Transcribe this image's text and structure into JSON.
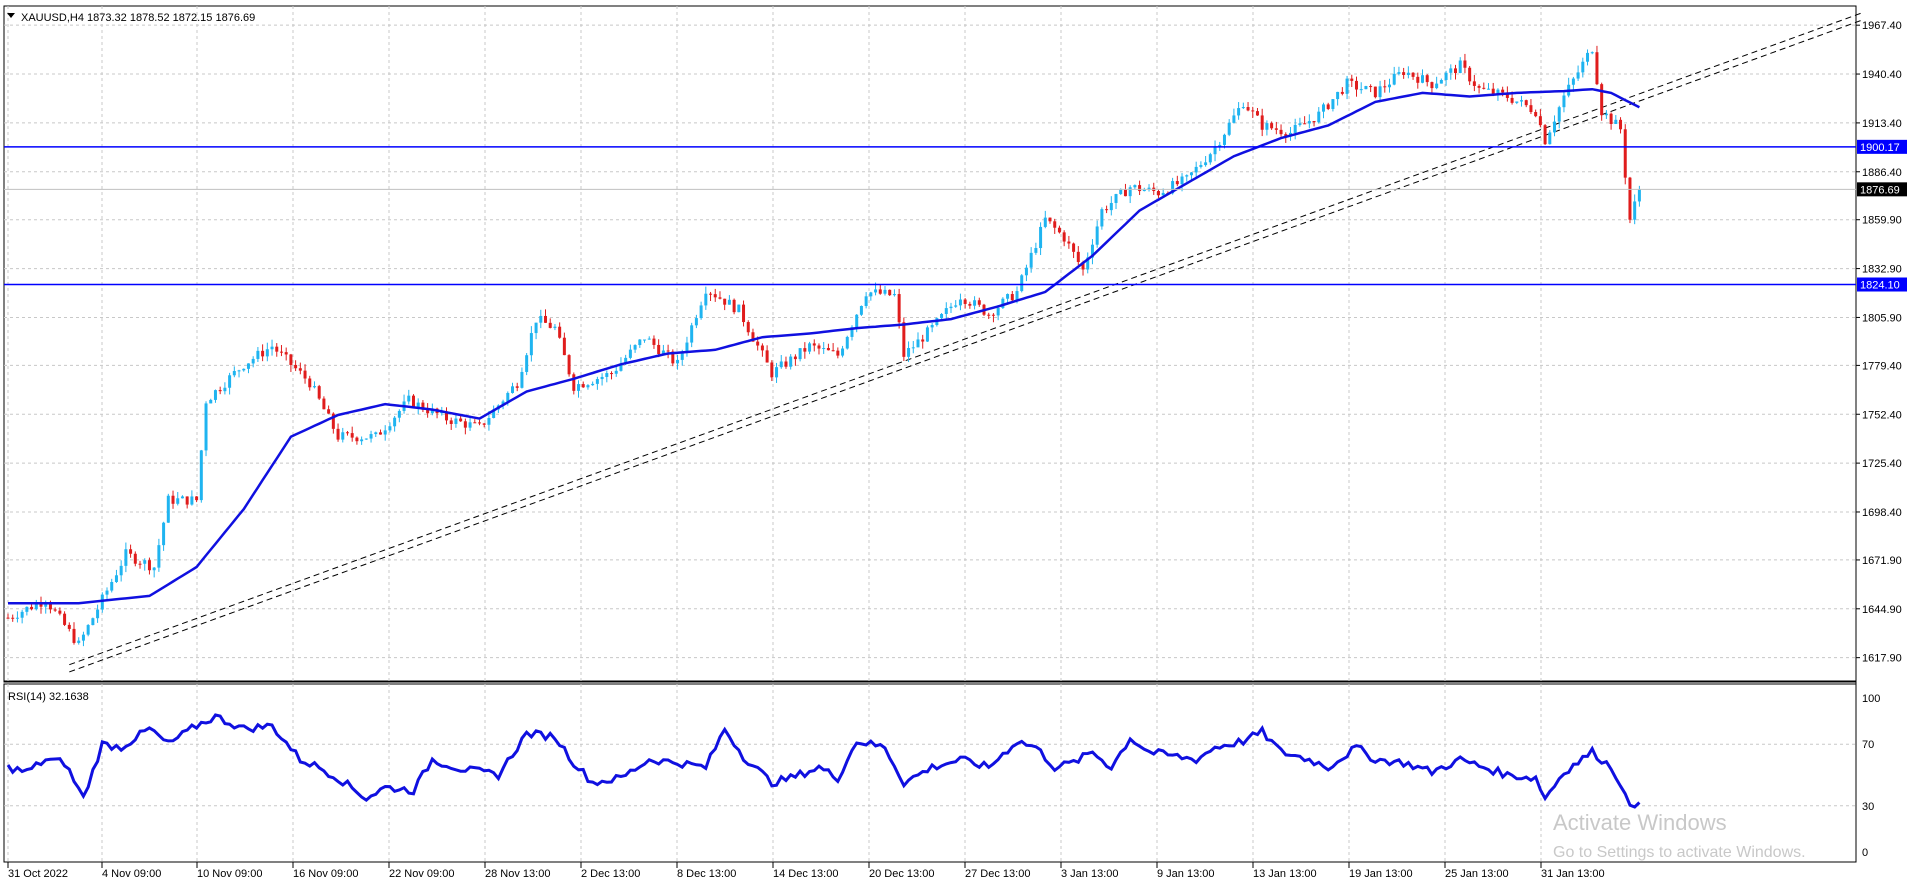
{
  "window": {
    "symbol_header": "XAUUSD,H4  1873.32 1878.52 1872.15 1876.69",
    "collapse_arrow_icon": "triangle-down-icon"
  },
  "price_panel": {
    "price_labels": [
      "1967.40",
      "1940.40",
      "1913.40",
      "1886.40",
      "1859.90",
      "1832.90",
      "1805.90",
      "1779.40",
      "1752.40",
      "1725.40",
      "1698.40",
      "1671.90",
      "1644.90",
      "1617.90"
    ],
    "horizontal_lines": [
      {
        "label": "1900.17",
        "value": 1900.17
      },
      {
        "label": "1824.10",
        "value": 1824.1
      }
    ],
    "current_price": {
      "label": "1876.69",
      "value": 1876.69
    },
    "colors": {
      "bull": "#1fb4f0",
      "bear": "#e01c1c",
      "ma": "#1010e0",
      "hline": "#0000ff",
      "tag_bg": "#0000ff",
      "price_tag_bg": "#000000"
    }
  },
  "rsi_panel": {
    "header": "RSI(14) 32.1638",
    "levels": [
      "100",
      "70",
      "30",
      "0"
    ],
    "color": "#1010e0"
  },
  "time_axis": {
    "labels": [
      "31 Oct 2022",
      "4 Nov 09:00",
      "10 Nov 09:00",
      "16 Nov 09:00",
      "22 Nov 09:00",
      "28 Nov 13:00",
      "2 Dec 13:00",
      "8 Dec 13:00",
      "14 Dec 13:00",
      "20 Dec 13:00",
      "27 Dec 13:00",
      "3 Jan 13:00",
      "9 Jan 13:00",
      "13 Jan 13:00",
      "19 Jan 13:00",
      "25 Jan 13:00",
      "31 Jan 13:00"
    ]
  },
  "watermark": {
    "title": "Activate Windows",
    "subtitle": "Go to Settings to activate Windows."
  },
  "chart_data": [
    {
      "type": "candlestick",
      "ylim": [
        1605,
        1978
      ],
      "close_anchors": [
        [
          0,
          1640
        ],
        [
          8,
          1650
        ],
        [
          15,
          1625
        ],
        [
          20,
          1650
        ],
        [
          25,
          1675
        ],
        [
          31,
          1668
        ],
        [
          34,
          1705
        ],
        [
          40,
          1705
        ],
        [
          42,
          1760
        ],
        [
          50,
          1780
        ],
        [
          56,
          1790
        ],
        [
          64,
          1770
        ],
        [
          70,
          1740
        ],
        [
          78,
          1740
        ],
        [
          85,
          1760
        ],
        [
          93,
          1750
        ],
        [
          100,
          1745
        ],
        [
          108,
          1770
        ],
        [
          112,
          1805
        ],
        [
          116,
          1800
        ],
        [
          120,
          1768
        ],
        [
          128,
          1775
        ],
        [
          135,
          1795
        ],
        [
          142,
          1780
        ],
        [
          148,
          1822
        ],
        [
          155,
          1810
        ],
        [
          162,
          1775
        ],
        [
          170,
          1790
        ],
        [
          176,
          1785
        ],
        [
          182,
          1820
        ],
        [
          188,
          1818
        ],
        [
          190,
          1785
        ],
        [
          196,
          1800
        ],
        [
          202,
          1818
        ],
        [
          208,
          1808
        ],
        [
          214,
          1820
        ],
        [
          220,
          1860
        ],
        [
          224,
          1850
        ],
        [
          228,
          1832
        ],
        [
          232,
          1865
        ],
        [
          238,
          1878
        ],
        [
          244,
          1875
        ],
        [
          250,
          1882
        ],
        [
          256,
          1900
        ],
        [
          262,
          1925
        ],
        [
          266,
          1912
        ],
        [
          272,
          1908
        ],
        [
          278,
          1918
        ],
        [
          284,
          1935
        ],
        [
          290,
          1930
        ],
        [
          296,
          1942
        ],
        [
          302,
          1935
        ],
        [
          308,
          1945
        ],
        [
          312,
          1932
        ],
        [
          318,
          1928
        ],
        [
          324,
          1920
        ],
        [
          326,
          1904
        ],
        [
          330,
          1928
        ],
        [
          336,
          1955
        ],
        [
          338,
          1920
        ],
        [
          342,
          1910
        ],
        [
          344,
          1860
        ],
        [
          346,
          1876.69
        ]
      ],
      "ma_anchors": [
        [
          0,
          1648
        ],
        [
          15,
          1648
        ],
        [
          30,
          1652
        ],
        [
          40,
          1668
        ],
        [
          50,
          1700
        ],
        [
          60,
          1740
        ],
        [
          70,
          1752
        ],
        [
          80,
          1758
        ],
        [
          90,
          1755
        ],
        [
          100,
          1750
        ],
        [
          110,
          1765
        ],
        [
          120,
          1772
        ],
        [
          130,
          1780
        ],
        [
          140,
          1786
        ],
        [
          150,
          1788
        ],
        [
          160,
          1795
        ],
        [
          170,
          1797
        ],
        [
          180,
          1800
        ],
        [
          190,
          1802
        ],
        [
          200,
          1805
        ],
        [
          210,
          1812
        ],
        [
          220,
          1820
        ],
        [
          230,
          1840
        ],
        [
          240,
          1865
        ],
        [
          250,
          1880
        ],
        [
          260,
          1895
        ],
        [
          270,
          1905
        ],
        [
          280,
          1912
        ],
        [
          290,
          1925
        ],
        [
          300,
          1930
        ],
        [
          310,
          1928
        ],
        [
          320,
          1930
        ],
        [
          330,
          1931
        ],
        [
          336,
          1932
        ],
        [
          340,
          1930
        ],
        [
          346,
          1922
        ]
      ],
      "trendline_pair": [
        [
          13,
          1610,
          393,
          1970
        ],
        [
          13,
          1614,
          393,
          1974
        ]
      ]
    },
    {
      "type": "line",
      "name": "RSI(14)",
      "ylim": [
        0,
        100
      ],
      "levels": [
        30,
        70
      ],
      "anchors": [
        [
          0,
          55
        ],
        [
          4,
          52
        ],
        [
          8,
          60
        ],
        [
          12,
          58
        ],
        [
          16,
          35
        ],
        [
          20,
          70
        ],
        [
          24,
          68
        ],
        [
          30,
          80
        ],
        [
          34,
          70
        ],
        [
          40,
          82
        ],
        [
          44,
          88
        ],
        [
          50,
          80
        ],
        [
          56,
          82
        ],
        [
          62,
          60
        ],
        [
          66,
          55
        ],
        [
          70,
          48
        ],
        [
          76,
          35
        ],
        [
          80,
          42
        ],
        [
          86,
          40
        ],
        [
          90,
          60
        ],
        [
          96,
          54
        ],
        [
          100,
          52
        ],
        [
          104,
          50
        ],
        [
          110,
          77
        ],
        [
          116,
          75
        ],
        [
          120,
          58
        ],
        [
          124,
          45
        ],
        [
          130,
          48
        ],
        [
          136,
          60
        ],
        [
          142,
          58
        ],
        [
          148,
          55
        ],
        [
          152,
          80
        ],
        [
          156,
          62
        ],
        [
          162,
          45
        ],
        [
          166,
          48
        ],
        [
          172,
          55
        ],
        [
          176,
          48
        ],
        [
          180,
          72
        ],
        [
          186,
          68
        ],
        [
          190,
          45
        ],
        [
          196,
          55
        ],
        [
          202,
          60
        ],
        [
          208,
          55
        ],
        [
          214,
          72
        ],
        [
          218,
          68
        ],
        [
          222,
          55
        ],
        [
          226,
          58
        ],
        [
          230,
          65
        ],
        [
          234,
          55
        ],
        [
          238,
          74
        ],
        [
          242,
          65
        ],
        [
          248,
          62
        ],
        [
          252,
          60
        ],
        [
          256,
          68
        ],
        [
          262,
          72
        ],
        [
          266,
          78
        ],
        [
          270,
          65
        ],
        [
          276,
          60
        ],
        [
          280,
          55
        ],
        [
          286,
          68
        ],
        [
          290,
          60
        ],
        [
          296,
          58
        ],
        [
          302,
          52
        ],
        [
          308,
          60
        ],
        [
          312,
          56
        ],
        [
          318,
          50
        ],
        [
          324,
          48
        ],
        [
          326,
          35
        ],
        [
          330,
          52
        ],
        [
          336,
          65
        ],
        [
          340,
          55
        ],
        [
          342,
          45
        ],
        [
          344,
          28
        ],
        [
          346,
          32.16
        ]
      ]
    }
  ]
}
